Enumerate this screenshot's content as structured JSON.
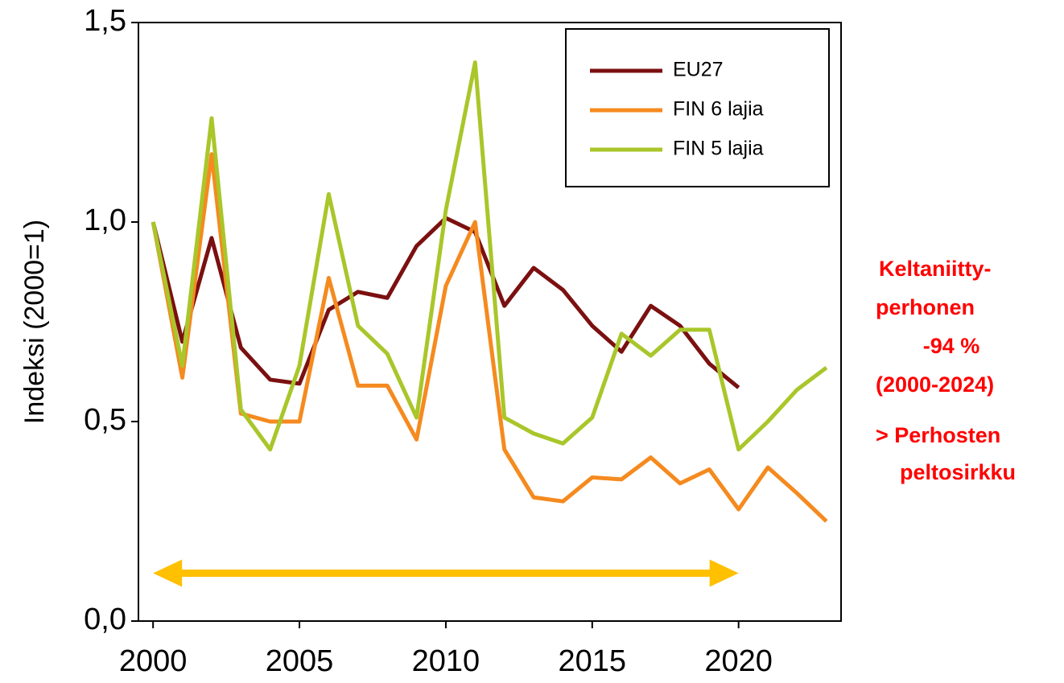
{
  "chart_data": {
    "type": "line",
    "y_label": "Indeksi (2000=1)",
    "x": [
      2000,
      2001,
      2002,
      2003,
      2004,
      2005,
      2006,
      2007,
      2008,
      2009,
      2010,
      2011,
      2012,
      2013,
      2014,
      2015,
      2016,
      2017,
      2018,
      2019,
      2020,
      2021,
      2022,
      2023
    ],
    "series": [
      {
        "name": "EU27",
        "color": "#7b1010",
        "values": [
          1.0,
          0.7,
          0.96,
          0.685,
          0.605,
          0.595,
          0.78,
          0.825,
          0.81,
          0.94,
          1.01,
          0.975,
          0.79,
          0.885,
          0.83,
          0.74,
          0.675,
          0.79,
          0.74,
          0.645,
          0.585,
          null,
          null,
          null
        ]
      },
      {
        "name": "FIN 6 lajia",
        "color": "#f58a1f",
        "values": [
          1.0,
          0.61,
          1.17,
          0.52,
          0.5,
          0.5,
          0.86,
          0.59,
          0.59,
          0.455,
          0.84,
          1.0,
          0.43,
          0.31,
          0.3,
          0.36,
          0.355,
          0.41,
          0.345,
          0.38,
          0.28,
          0.385,
          0.32,
          0.25
        ]
      },
      {
        "name": "FIN 5 lajia",
        "color": "#a9c62a",
        "values": [
          1.0,
          0.64,
          1.26,
          0.53,
          0.43,
          0.64,
          1.07,
          0.74,
          0.67,
          0.51,
          1.03,
          1.4,
          0.51,
          0.47,
          0.445,
          0.51,
          0.72,
          0.665,
          0.73,
          0.73,
          0.43,
          0.5,
          0.58,
          0.635
        ]
      }
    ],
    "xlim": [
      1999.5,
      2023.5
    ],
    "xticks": [
      2000,
      2005,
      2010,
      2015,
      2020
    ],
    "ylim": [
      0,
      1.5
    ],
    "yticks": [
      {
        "value": 0,
        "label": "0,0"
      },
      {
        "value": 0.5,
        "label": "0,5"
      },
      {
        "value": 1.0,
        "label": "1,0"
      },
      {
        "value": 1.5,
        "label": "1,5"
      }
    ],
    "legend": "upper right",
    "arrow": {
      "x": [
        2000,
        2020
      ],
      "y": 0.12,
      "color": "#ffc000"
    },
    "annotation": {
      "color": "#ff0000",
      "lines": [
        "Keltaniitty-",
        "perhonen",
        "-94 %",
        "(2000-2024)",
        "> Perhosten",
        "peltosirkku"
      ]
    }
  }
}
